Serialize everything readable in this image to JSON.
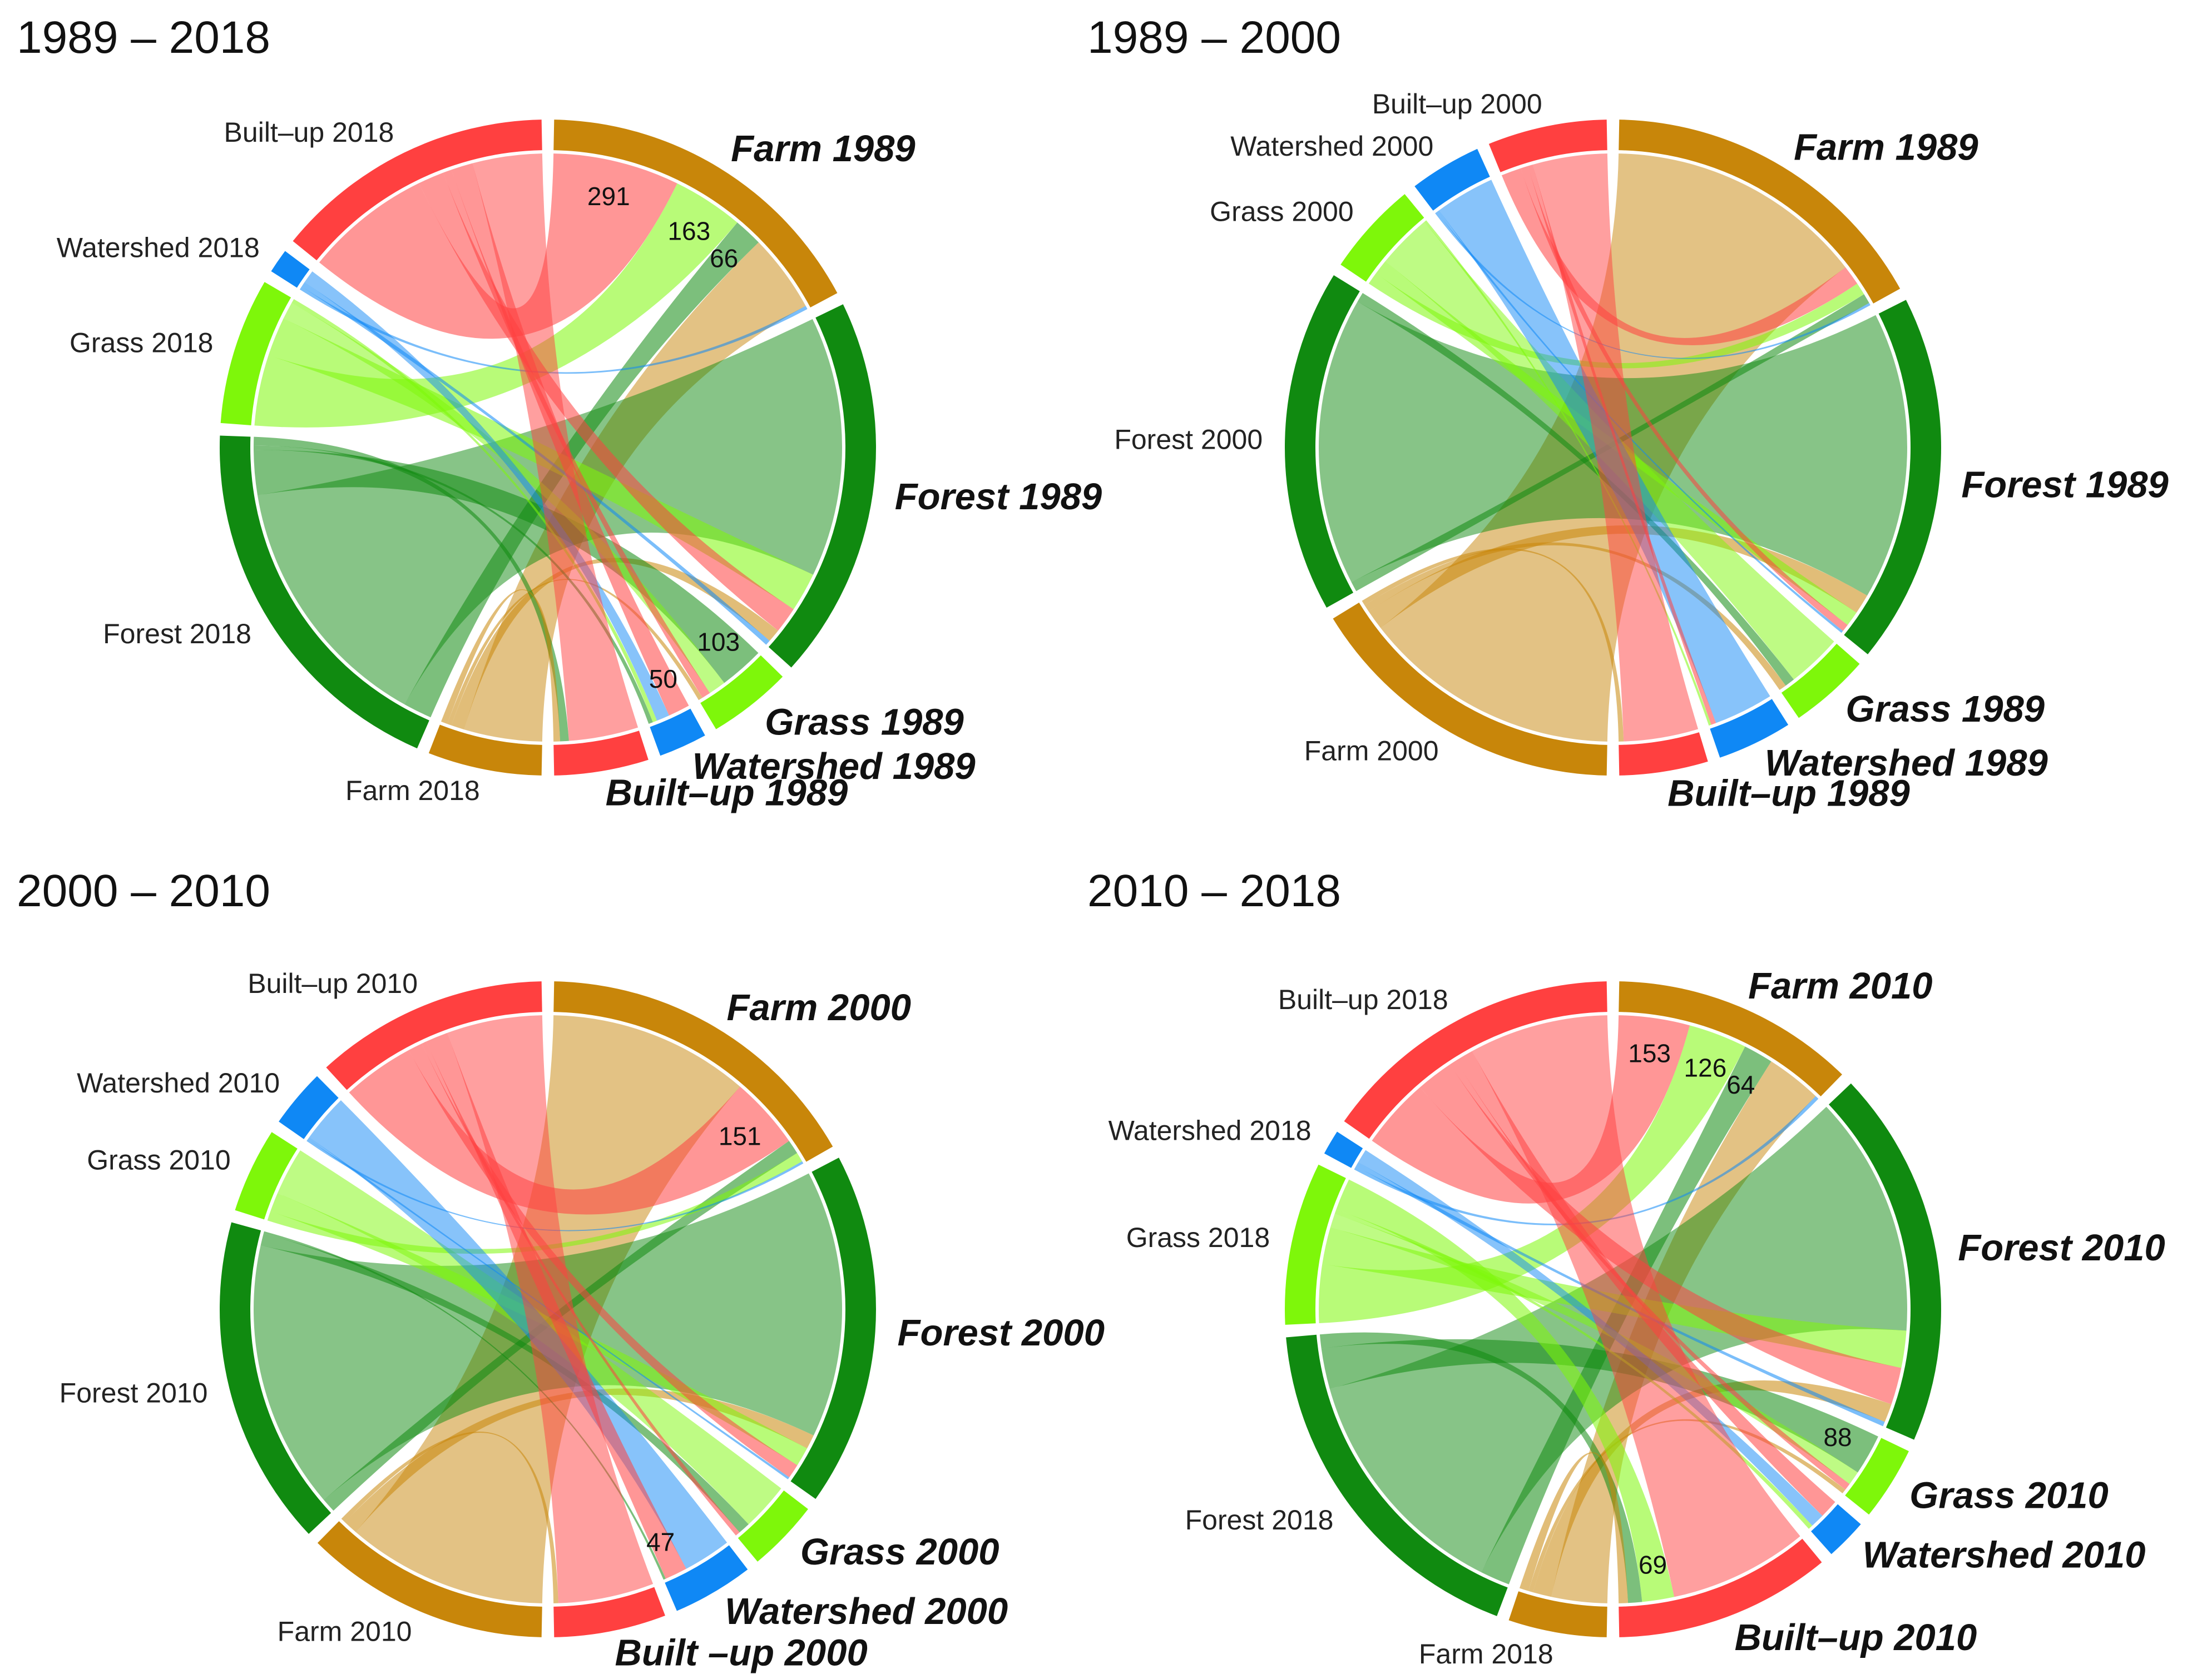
{
  "colors": {
    "Farm": "#c8860a",
    "Forest": "#108a10",
    "Grass": "#7ef70a",
    "Watershed": "#0f88f5",
    "Built-up": "#ff4040"
  },
  "chart_data": [
    {
      "type": "chord",
      "title": "1989 – 2018",
      "source_labels": [
        "Farm 1989",
        "Forest 1989",
        "Grass 1989",
        "Watershed 1989",
        "Built–up 1989"
      ],
      "target_labels": [
        "Built–up 2018",
        "Watershed 2018",
        "Grass 2018",
        "Forest 2018",
        "Farm 2018"
      ],
      "flow_labels": [
        "291",
        "163",
        "66",
        "103",
        "50"
      ],
      "flows": [
        {
          "from": "Farm",
          "to": "Built-up",
          "value": 291
        },
        {
          "from": "Farm",
          "to": "Grass",
          "value": 163
        },
        {
          "from": "Farm",
          "to": "Forest",
          "value": 66
        },
        {
          "from": "Farm",
          "to": "Farm",
          "value": 180
        },
        {
          "from": "Farm",
          "to": "Watershed",
          "value": 8
        },
        {
          "from": "Forest",
          "to": "Forest",
          "value": 600
        },
        {
          "from": "Forest",
          "to": "Grass",
          "value": 90
        },
        {
          "from": "Forest",
          "to": "Built-up",
          "value": 60
        },
        {
          "from": "Forest",
          "to": "Farm",
          "value": 30
        },
        {
          "from": "Forest",
          "to": "Watershed",
          "value": 12
        },
        {
          "from": "Grass",
          "to": "Forest",
          "value": 103
        },
        {
          "from": "Grass",
          "to": "Grass",
          "value": 40
        },
        {
          "from": "Grass",
          "to": "Built-up",
          "value": 20
        },
        {
          "from": "Grass",
          "to": "Farm",
          "value": 10
        },
        {
          "from": "Watershed",
          "to": "Built-up",
          "value": 50
        },
        {
          "from": "Watershed",
          "to": "Watershed",
          "value": 30
        },
        {
          "from": "Watershed",
          "to": "Grass",
          "value": 10
        },
        {
          "from": "Watershed",
          "to": "Forest",
          "value": 10
        },
        {
          "from": "Built-up",
          "to": "Built-up",
          "value": 160
        },
        {
          "from": "Built-up",
          "to": "Forest",
          "value": 20
        },
        {
          "from": "Built-up",
          "to": "Farm",
          "value": 15
        }
      ]
    },
    {
      "type": "chord",
      "title": "1989 – 2000",
      "source_labels": [
        "Farm 1989",
        "Forest 1989",
        "Grass 1989",
        "Watershed 1989",
        "Built–up 1989"
      ],
      "target_labels": [
        "Built–up 2000",
        "Watershed 2000",
        "Grass 2000",
        "Forest 2000",
        "Farm 2000"
      ],
      "flow_labels": [],
      "flows": [
        {
          "from": "Farm",
          "to": "Farm",
          "value": 520
        },
        {
          "from": "Farm",
          "to": "Built-up",
          "value": 40
        },
        {
          "from": "Farm",
          "to": "Grass",
          "value": 25
        },
        {
          "from": "Farm",
          "to": "Forest",
          "value": 20
        },
        {
          "from": "Farm",
          "to": "Watershed",
          "value": 5
        },
        {
          "from": "Forest",
          "to": "Forest",
          "value": 580
        },
        {
          "from": "Forest",
          "to": "Farm",
          "value": 40
        },
        {
          "from": "Forest",
          "to": "Grass",
          "value": 30
        },
        {
          "from": "Forest",
          "to": "Built-up",
          "value": 15
        },
        {
          "from": "Forest",
          "to": "Watershed",
          "value": 5
        },
        {
          "from": "Grass",
          "to": "Grass",
          "value": 110
        },
        {
          "from": "Grass",
          "to": "Forest",
          "value": 20
        },
        {
          "from": "Grass",
          "to": "Farm",
          "value": 15
        },
        {
          "from": "Watershed",
          "to": "Watershed",
          "value": 120
        },
        {
          "from": "Watershed",
          "to": "Built-up",
          "value": 10
        },
        {
          "from": "Watershed",
          "to": "Grass",
          "value": 5
        },
        {
          "from": "Built-up",
          "to": "Built-up",
          "value": 150
        },
        {
          "from": "Built-up",
          "to": "Farm",
          "value": 10
        }
      ]
    },
    {
      "type": "chord",
      "title": "2000 – 2010",
      "source_labels": [
        "Farm 2000",
        "Forest 2000",
        "Grass 2000",
        "Watershed 2000",
        "Built –up 2000"
      ],
      "target_labels": [
        "Built–up 2010",
        "Watershed 2010",
        "Grass 2010",
        "Forest 2010",
        "Farm 2010"
      ],
      "flow_labels": [
        "151",
        "47"
      ],
      "flows": [
        {
          "from": "Farm",
          "to": "Farm",
          "value": 420
        },
        {
          "from": "Farm",
          "to": "Built-up",
          "value": 151
        },
        {
          "from": "Farm",
          "to": "Forest",
          "value": 30
        },
        {
          "from": "Farm",
          "to": "Grass",
          "value": 20
        },
        {
          "from": "Farm",
          "to": "Watershed",
          "value": 5
        },
        {
          "from": "Forest",
          "to": "Forest",
          "value": 560
        },
        {
          "from": "Forest",
          "to": "Farm",
          "value": 30
        },
        {
          "from": "Forest",
          "to": "Grass",
          "value": 40
        },
        {
          "from": "Forest",
          "to": "Built-up",
          "value": 30
        },
        {
          "from": "Forest",
          "to": "Watershed",
          "value": 5
        },
        {
          "from": "Grass",
          "to": "Grass",
          "value": 100
        },
        {
          "from": "Grass",
          "to": "Forest",
          "value": 25
        },
        {
          "from": "Grass",
          "to": "Built-up",
          "value": 10
        },
        {
          "from": "Watershed",
          "to": "Watershed",
          "value": 100
        },
        {
          "from": "Watershed",
          "to": "Built-up",
          "value": 47
        },
        {
          "from": "Watershed",
          "to": "Forest",
          "value": 5
        },
        {
          "from": "Built-up",
          "to": "Built-up",
          "value": 200
        },
        {
          "from": "Built-up",
          "to": "Farm",
          "value": 10
        }
      ]
    },
    {
      "type": "chord",
      "title": "2010 – 2018",
      "source_labels": [
        "Farm 2010",
        "Forest 2010",
        "Grass 2010",
        "Watershed 2010",
        "Built–up 2010"
      ],
      "target_labels": [
        "Built–up 2018",
        "Watershed 2018",
        "Grass 2018",
        "Forest 2018",
        "Farm 2018"
      ],
      "flow_labels": [
        "153",
        "126",
        "64",
        "88",
        "69"
      ],
      "flows": [
        {
          "from": "Farm",
          "to": "Built-up",
          "value": 153
        },
        {
          "from": "Farm",
          "to": "Grass",
          "value": 126
        },
        {
          "from": "Farm",
          "to": "Forest",
          "value": 64
        },
        {
          "from": "Farm",
          "to": "Farm",
          "value": 120
        },
        {
          "from": "Farm",
          "to": "Watershed",
          "value": 8
        },
        {
          "from": "Forest",
          "to": "Forest",
          "value": 520
        },
        {
          "from": "Forest",
          "to": "Grass",
          "value": 80
        },
        {
          "from": "Forest",
          "to": "Built-up",
          "value": 80
        },
        {
          "from": "Forest",
          "to": "Farm",
          "value": 40
        },
        {
          "from": "Forest",
          "to": "Watershed",
          "value": 10
        },
        {
          "from": "Grass",
          "to": "Forest",
          "value": 88
        },
        {
          "from": "Grass",
          "to": "Grass",
          "value": 30
        },
        {
          "from": "Grass",
          "to": "Built-up",
          "value": 15
        },
        {
          "from": "Grass",
          "to": "Farm",
          "value": 10
        },
        {
          "from": "Watershed",
          "to": "Built-up",
          "value": 40
        },
        {
          "from": "Watershed",
          "to": "Watershed",
          "value": 30
        },
        {
          "from": "Watershed",
          "to": "Grass",
          "value": 10
        },
        {
          "from": "Built-up",
          "to": "Built-up",
          "value": 300
        },
        {
          "from": "Built-up",
          "to": "Grass",
          "value": 69
        },
        {
          "from": "Built-up",
          "to": "Forest",
          "value": 30
        },
        {
          "from": "Built-up",
          "to": "Farm",
          "value": 20
        }
      ]
    }
  ]
}
